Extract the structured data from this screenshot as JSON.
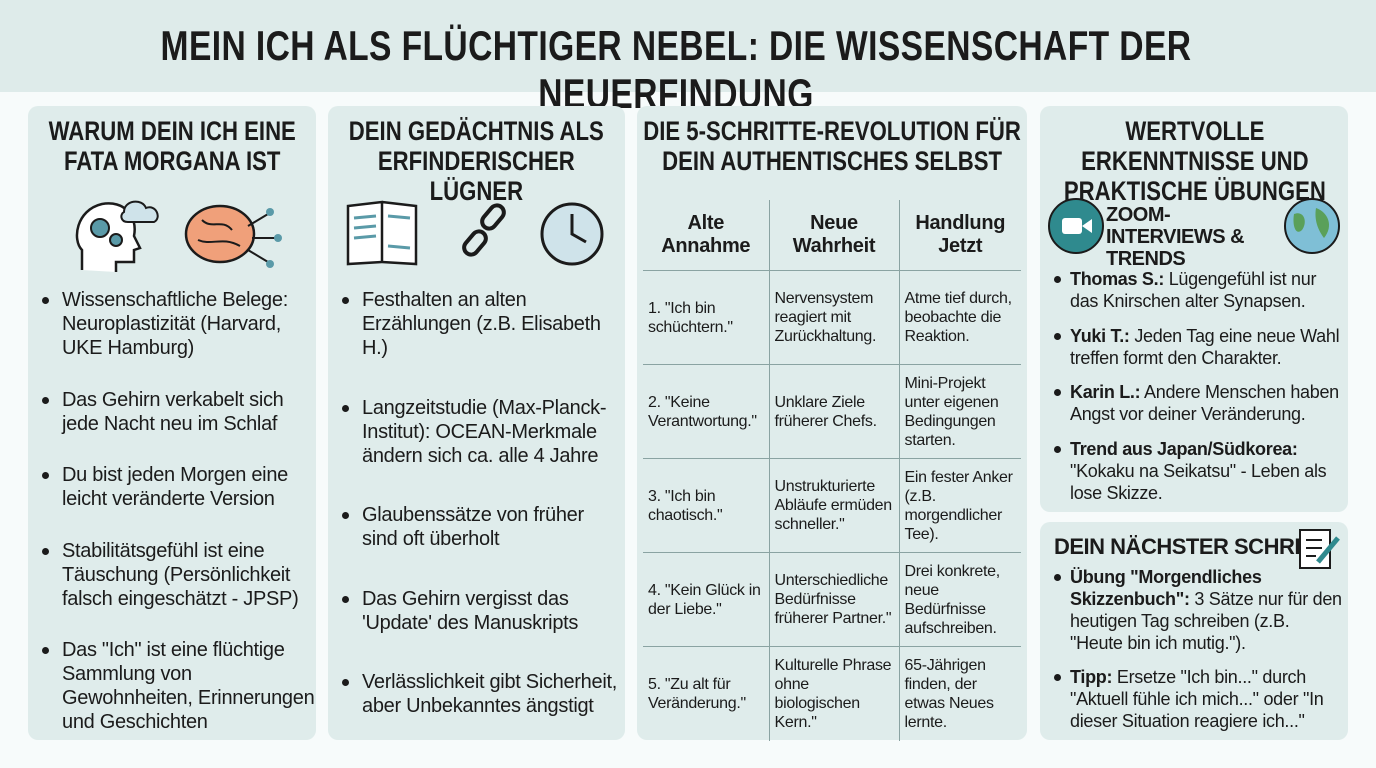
{
  "title": "MEIN ICH ALS FLÜCHTIGER NEBEL: DIE WISSENSCHAFT DER NEUERFINDUNG",
  "columns": [
    {
      "title": "WARUM DEIN ICH EINE FATA MORGANA IST",
      "bullets": [
        "Wissenschaftliche Belege: Neuroplastizität (Harvard, UKE Hamburg)",
        "Das Gehirn verkabelt sich jede Nacht neu im Schlaf",
        "Du bist jeden Morgen eine leicht veränderte Version",
        "Stabilitätsgefühl ist eine Täuschung (Persönlichkeit falsch eingeschätzt - JPSP)",
        "Das \"Ich\" ist eine flüchtige Sammlung von Gewohnheiten, Erinnerungen und Geschichten"
      ]
    },
    {
      "title": "DEIN GEDÄCHTNIS ALS ERFINDERISCHER LÜGNER",
      "bullets": [
        "Festhalten an alten Erzählungen (z.B. Elisabeth H.)",
        "Langzeitstudie (Max-Planck-Institut): OCEAN-Merkmale ändern sich ca. alle 4 Jahre",
        "Glaubenssätze von früher sind oft überholt",
        "Das Gehirn vergisst das 'Update' des Manuskripts",
        "Verlässlichkeit gibt Sicherheit, aber Unbekanntes ängstigt"
      ]
    }
  ],
  "revolution": {
    "title": "DIE 5-SCHRITTE-REVOLUTION FÜR DEIN AUTHENTISCHES SELBST",
    "headers": [
      "Alte Annahme",
      "Neue Wahrheit",
      "Handlung Jetzt"
    ],
    "rows": [
      [
        "1. \"Ich bin schüchtern.\"",
        "Nervensystem reagiert mit Zurückhaltung.",
        "Atme tief durch, beobachte die Reaktion."
      ],
      [
        "2. \"Keine Verantwortung.\"",
        "Unklare Ziele früherer Chefs.",
        "Mini-Projekt unter eigenen Bedingungen starten."
      ],
      [
        "3. \"Ich bin chaotisch.\"",
        "Unstrukturierte Abläufe ermüden schneller.\"",
        "Ein fester Anker (z.B. morgendlicher Tee)."
      ],
      [
        "4. \"Kein Glück in der Liebe.\"",
        "Unterschiedliche Bedürfnisse früherer Partner.\"",
        "Drei konkrete, neue Bedürfnisse aufschreiben."
      ],
      [
        "5. \"Zu alt für Veränderung.\"",
        "Kulturelle Phrase ohne biologischen Kern.\"",
        "65-Jährigen finden, der etwas Neues lernte."
      ]
    ]
  },
  "insights": {
    "title": "WERTVOLLE ERKENNTNISSE UND PRAKTISCHE ÜBUNGEN",
    "subtitle": "ZOOM-INTERVIEWS & TRENDS",
    "items": [
      {
        "name": "Thomas S.:",
        "text": "Lügengefühl ist nur das Knirschen alter Synapsen."
      },
      {
        "name": "Yuki T.:",
        "text": "Jeden Tag eine neue Wahl treffen formt den Charakter."
      },
      {
        "name": "Karin L.:",
        "text": "Andere Menschen haben Angst vor deiner Veränderung."
      },
      {
        "name": "Trend aus Japan/Südkorea:",
        "text": "\"Kokaku na Seikatsu\" - Leben als lose Skizze."
      }
    ]
  },
  "next_step": {
    "title": "DEIN NÄCHSTER SCHRITT",
    "items": [
      {
        "name": "Übung \"Morgendliches Skizzenbuch\":",
        "text": "3 Sätze nur für den heutigen Tag schreiben (z.B. \"Heute bin ich mutig.\")."
      },
      {
        "name": "Tipp:",
        "text": "Ersetze \"Ich bin...\" durch \"Aktuell fühle ich mich...\" oder \"In dieser Situation reagiere ich...\""
      }
    ]
  }
}
